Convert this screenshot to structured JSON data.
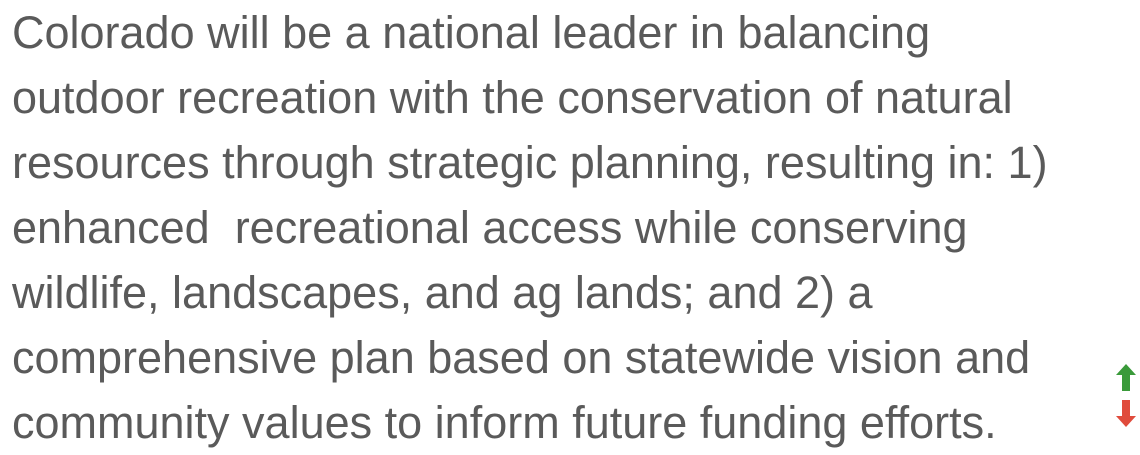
{
  "paragraph": {
    "lines": [
      "Colorado will be a national leader in balancing",
      "outdoor recreation with the conservation of natural",
      "resources through strategic planning, resulting in: 1)",
      "enhanced  recreational access while conserving",
      "wildlife, landscapes, and ag lands; and 2) a",
      "comprehensive plan based on statewide vision and",
      "community values to inform future funding efforts."
    ]
  }
}
